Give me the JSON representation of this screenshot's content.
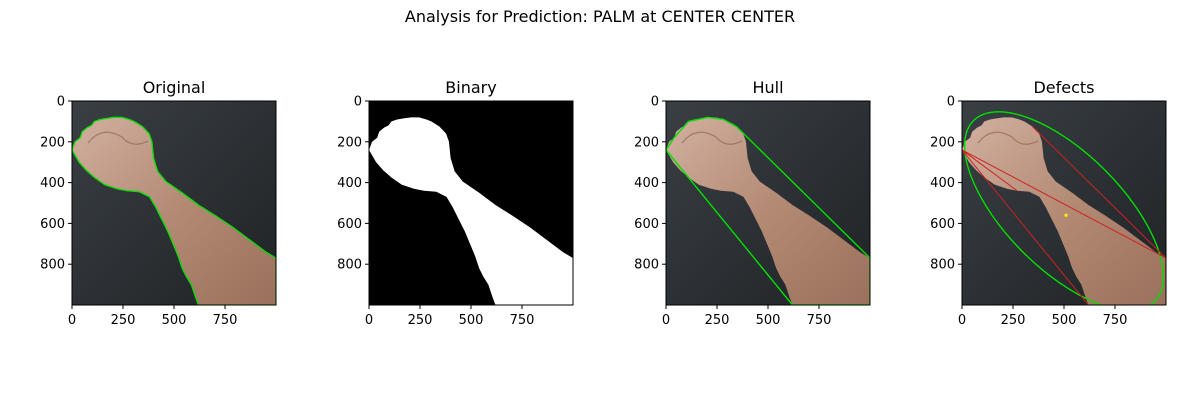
{
  "figure": {
    "suptitle": "Analysis for Prediction: PALM at CENTER CENTER"
  },
  "panels": [
    {
      "id": "original",
      "title": "Original",
      "image": "photo of forearm and clenched fist on dark background",
      "overlay": "green hand contour"
    },
    {
      "id": "binary",
      "title": "Binary",
      "image": "binary mask: white hand silhouette on black",
      "overlay": "none"
    },
    {
      "id": "hull",
      "title": "Hull",
      "image": "photo of forearm and clenched fist on dark background",
      "overlay": "green convex hull polygon"
    },
    {
      "id": "defects",
      "title": "Defects",
      "image": "photo of forearm and clenched fist on dark background",
      "overlay": "green fitted ellipse, red hull lines, yellow defect point"
    }
  ],
  "axes": {
    "x_ticks": [
      "0",
      "250",
      "500",
      "750"
    ],
    "y_ticks": [
      "0",
      "200",
      "400",
      "600",
      "800"
    ],
    "x_tick_values": [
      0,
      250,
      500,
      750
    ],
    "y_tick_values": [
      0,
      200,
      400,
      600,
      800
    ],
    "x_range": [
      0,
      1000
    ],
    "y_range": [
      0,
      1000
    ]
  },
  "colors": {
    "background": "#2b2f33",
    "skin": "#b48c78",
    "contour": "#00e000",
    "defect_line": "#cc2222",
    "defect_point": "#ffee00",
    "mask_fg": "#ffffff",
    "mask_bg": "#000000"
  }
}
